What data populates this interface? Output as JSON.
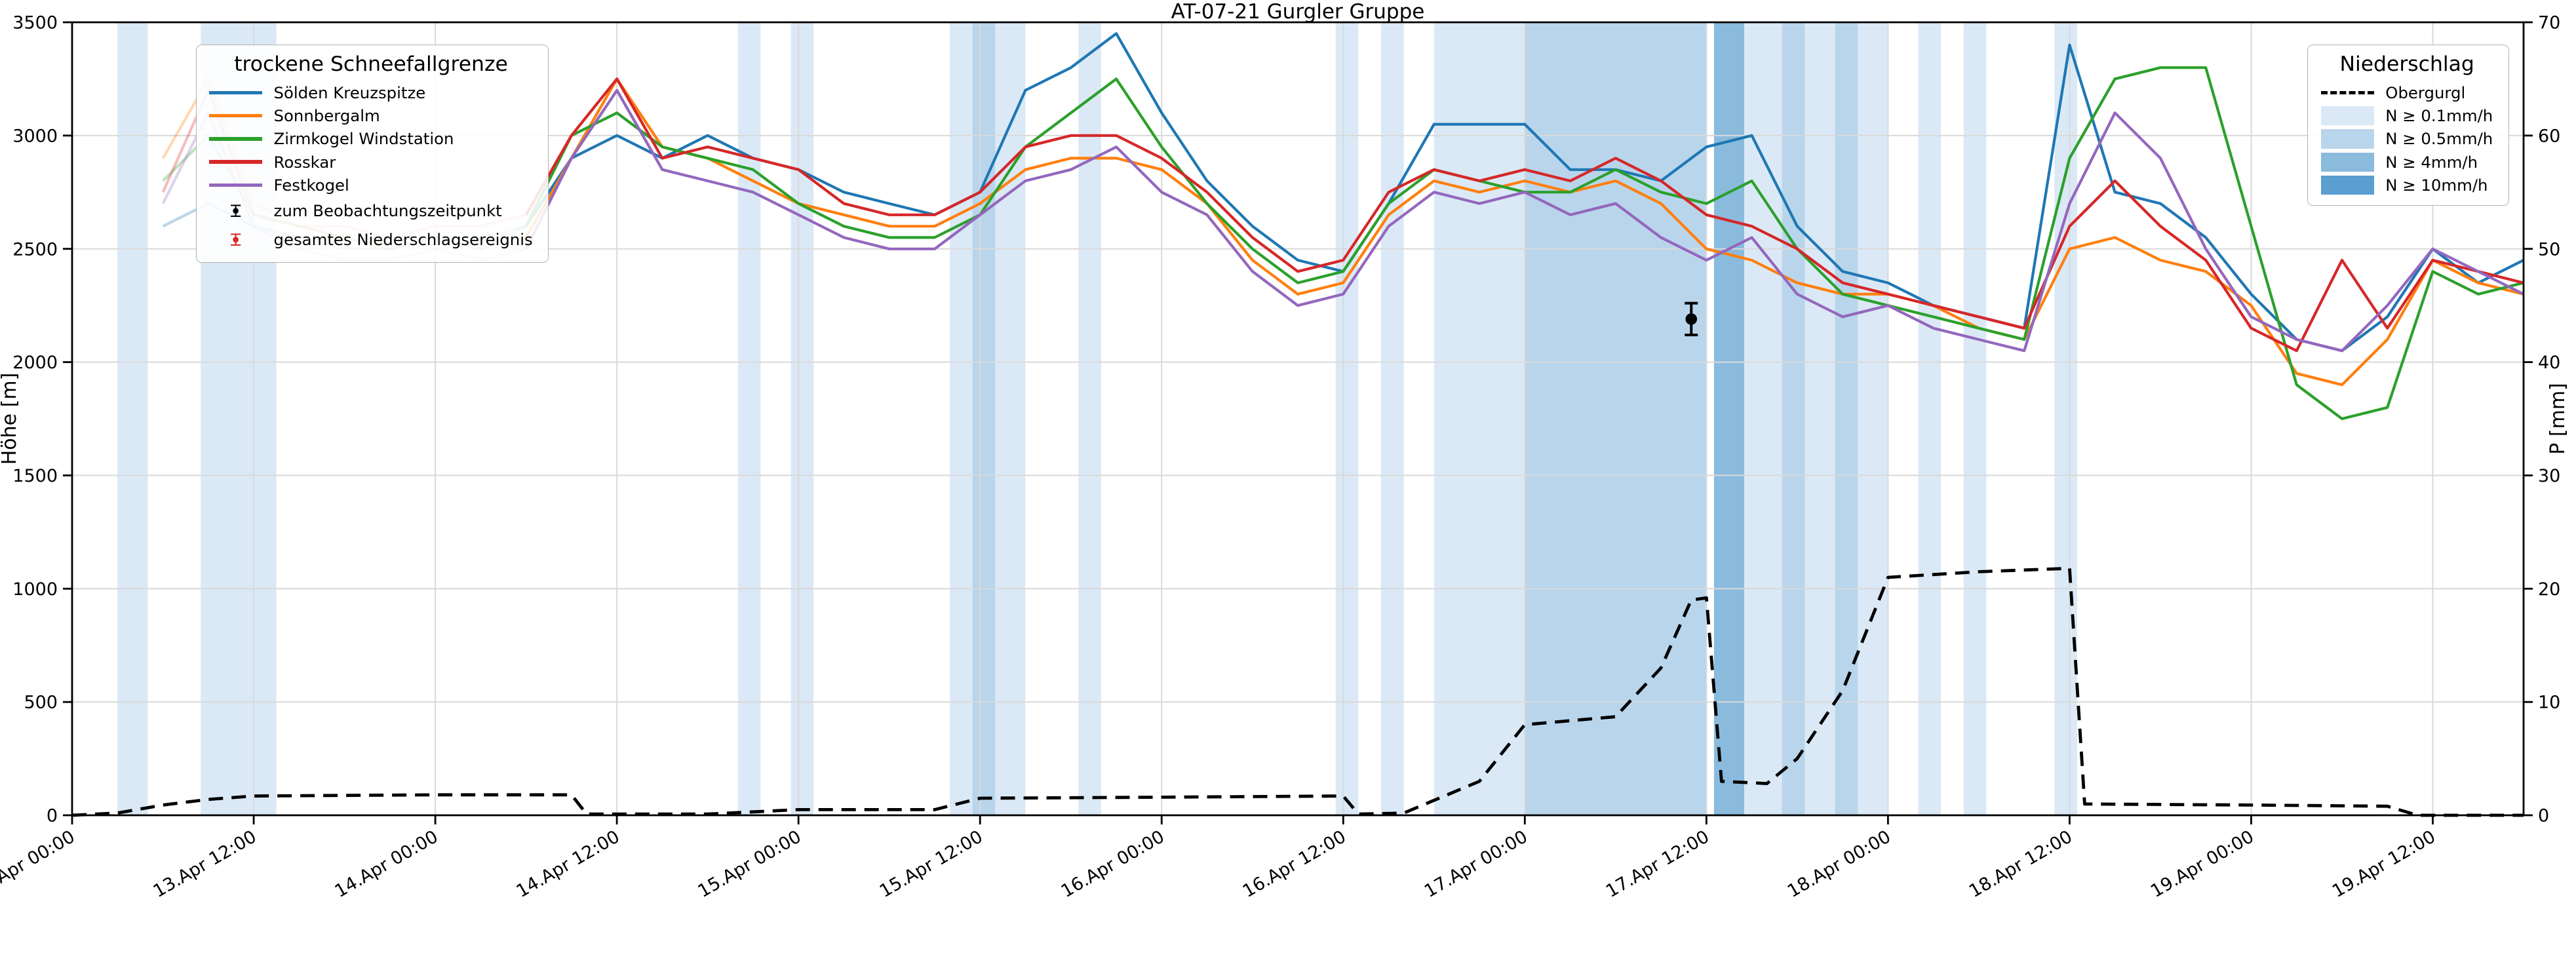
{
  "title": "AT-07-21 Gurgler Gruppe",
  "axes": {
    "y_left_label": "Höhe [m]",
    "y_right_label": "P [mm]",
    "y_left_range": [
      0,
      3500
    ],
    "y_right_range": [
      0,
      70
    ],
    "y_left_ticks": [
      0,
      500,
      1000,
      1500,
      2000,
      2500,
      3000,
      3500
    ],
    "y_right_ticks": [
      0,
      10,
      20,
      30,
      40,
      50,
      60,
      70
    ],
    "x_range_hours": [
      0,
      162
    ],
    "x_tick_hours": [
      0,
      12,
      24,
      36,
      48,
      60,
      72,
      84,
      96,
      108,
      120,
      132,
      144,
      156
    ],
    "x_tick_labels": [
      "13.Apr 00:00",
      "13.Apr 12:00",
      "14.Apr 00:00",
      "14.Apr 12:00",
      "15.Apr 00:00",
      "15.Apr 12:00",
      "16.Apr 00:00",
      "16.Apr 12:00",
      "17.Apr 00:00",
      "17.Apr 12:00",
      "18.Apr 00:00",
      "18.Apr 12:00",
      "19.Apr 00:00",
      "19.Apr 12:00"
    ]
  },
  "legend_snowline": {
    "title": "trockene Schneefallgrenze",
    "entries": [
      {
        "label": "Sölden Kreuzspitze",
        "color": "#1f77b4"
      },
      {
        "label": "Sonnbergalm",
        "color": "#ff7f0e"
      },
      {
        "label": "Zirmkogel Windstation",
        "color": "#2ca02c"
      },
      {
        "label": "Rosskar",
        "color": "#d62728"
      },
      {
        "label": "Festkogel",
        "color": "#9467bd"
      }
    ],
    "marker_entries": [
      {
        "label": "zum Beobachtungszeitpunkt",
        "color": "#000000"
      },
      {
        "label": "gesamtes Niederschlagsereignis",
        "color": "#d62728"
      }
    ]
  },
  "legend_precip": {
    "title": "Niederschlag",
    "line_entry": {
      "label": "Obergurgl",
      "color": "#000000",
      "style": "dashed"
    },
    "band_entries": [
      {
        "label": "N ≥ 0.1mm/h",
        "color": "#dbe9f6",
        "level": "0.1"
      },
      {
        "label": "N ≥ 0.5mm/h",
        "color": "#b9d5ec",
        "level": "0.5"
      },
      {
        "label": "N ≥ 4mm/h",
        "color": "#8abbdd",
        "level": "4"
      },
      {
        "label": "N ≥ 10mm/h",
        "color": "#5a9fd0",
        "level": "10"
      }
    ]
  },
  "chart_data": {
    "type": "line",
    "title": "AT-07-21 Gurgler Gruppe",
    "ylabel_left": "Höhe [m]",
    "ylabel_right": "P [mm]",
    "x_unit": "hours since 13.Apr 00:00",
    "grid": true,
    "faded_until_hour": 30,
    "x": [
      6,
      9,
      12,
      15,
      18,
      21,
      24,
      27,
      30,
      33,
      36,
      39,
      42,
      45,
      48,
      51,
      54,
      57,
      60,
      63,
      66,
      69,
      72,
      75,
      78,
      81,
      84,
      87,
      90,
      93,
      96,
      99,
      102,
      105,
      108,
      111,
      114,
      117,
      120,
      123,
      126,
      129,
      132,
      135,
      138,
      141,
      144,
      147,
      150,
      153,
      156,
      159,
      162
    ],
    "series": [
      {
        "name": "Sölden Kreuzspitze",
        "color": "#1f77b4",
        "values": [
          2600,
          2700,
          2600,
          2550,
          2500,
          2500,
          2550,
          2500,
          2600,
          2900,
          3000,
          2900,
          3000,
          2900,
          2850,
          2750,
          2700,
          2650,
          2750,
          3200,
          3300,
          3450,
          3100,
          2800,
          2600,
          2450,
          2400,
          2700,
          3050,
          3050,
          3050,
          2850,
          2850,
          2800,
          2950,
          3000,
          2600,
          2400,
          2350,
          2250,
          2200,
          2150,
          3400,
          2750,
          2700,
          2550,
          2300,
          2100,
          2050,
          2200,
          2500,
          2350,
          2450
        ]
      },
      {
        "name": "Sonnbergalm",
        "color": "#ff7f0e",
        "values": [
          2900,
          3250,
          2700,
          2600,
          2550,
          2500,
          2550,
          2500,
          2550,
          2900,
          3250,
          2950,
          2900,
          2800,
          2700,
          2650,
          2600,
          2600,
          2700,
          2850,
          2900,
          2900,
          2850,
          2700,
          2450,
          2300,
          2350,
          2650,
          2800,
          2750,
          2800,
          2750,
          2800,
          2700,
          2500,
          2450,
          2350,
          2300,
          2300,
          2250,
          2150,
          2100,
          2500,
          2550,
          2450,
          2400,
          2250,
          1950,
          1900,
          2100,
          2450,
          2350,
          2300
        ]
      },
      {
        "name": "Zirmkogel Windstation",
        "color": "#2ca02c",
        "values": [
          2800,
          3000,
          2650,
          2600,
          2550,
          2500,
          2550,
          2550,
          2600,
          3000,
          3100,
          2950,
          2900,
          2850,
          2700,
          2600,
          2550,
          2550,
          2650,
          2950,
          3100,
          3250,
          2950,
          2700,
          2500,
          2350,
          2400,
          2700,
          2850,
          2800,
          2750,
          2750,
          2850,
          2750,
          2700,
          2800,
          2500,
          2300,
          2250,
          2200,
          2150,
          2100,
          2900,
          3250,
          3300,
          3300,
          2600,
          1900,
          1750,
          1800,
          2400,
          2300,
          2350
        ]
      },
      {
        "name": "Rosskar",
        "color": "#d62728",
        "values": [
          2750,
          3200,
          2650,
          2600,
          2600,
          2550,
          2600,
          2600,
          2650,
          3000,
          3250,
          2900,
          2950,
          2900,
          2850,
          2700,
          2650,
          2650,
          2750,
          2950,
          3000,
          3000,
          2900,
          2750,
          2550,
          2400,
          2450,
          2750,
          2850,
          2800,
          2850,
          2800,
          2900,
          2800,
          2650,
          2600,
          2500,
          2350,
          2300,
          2250,
          2200,
          2150,
          2600,
          2800,
          2600,
          2450,
          2150,
          2050,
          2450,
          2150,
          2450,
          2400,
          2350
        ]
      },
      {
        "name": "Festkogel",
        "color": "#9467bd",
        "values": [
          2700,
          3100,
          2600,
          2500,
          2450,
          2450,
          2500,
          2450,
          2500,
          2900,
          3200,
          2850,
          2800,
          2750,
          2650,
          2550,
          2500,
          2500,
          2650,
          2800,
          2850,
          2950,
          2750,
          2650,
          2400,
          2250,
          2300,
          2600,
          2750,
          2700,
          2750,
          2650,
          2700,
          2550,
          2450,
          2550,
          2300,
          2200,
          2250,
          2150,
          2100,
          2050,
          2700,
          3100,
          2900,
          2500,
          2200,
          2100,
          2050,
          2250,
          2500,
          2400,
          2300
        ]
      }
    ],
    "precip_line": {
      "name": "Obergurgl",
      "color": "#000000",
      "style": "dashed",
      "axis": "right",
      "points": [
        [
          0,
          0
        ],
        [
          3,
          0.2
        ],
        [
          6,
          0.9
        ],
        [
          9,
          1.4
        ],
        [
          12,
          1.7
        ],
        [
          24,
          1.8
        ],
        [
          33,
          1.8
        ],
        [
          34,
          0.1
        ],
        [
          42,
          0.1
        ],
        [
          45,
          0.3
        ],
        [
          48,
          0.5
        ],
        [
          57,
          0.5
        ],
        [
          60,
          1.5
        ],
        [
          72,
          1.6
        ],
        [
          84,
          1.7
        ],
        [
          85,
          0.1
        ],
        [
          88,
          0.2
        ],
        [
          93,
          3
        ],
        [
          96,
          8
        ],
        [
          102,
          8.7
        ],
        [
          105,
          13
        ],
        [
          107,
          19
        ],
        [
          108,
          19.2
        ],
        [
          109,
          3
        ],
        [
          112,
          2.8
        ],
        [
          114,
          5
        ],
        [
          117,
          11
        ],
        [
          120,
          21
        ],
        [
          126,
          21.5
        ],
        [
          132,
          21.8
        ],
        [
          133,
          1
        ],
        [
          144,
          0.9
        ],
        [
          153,
          0.8
        ],
        [
          155,
          0
        ],
        [
          162,
          0
        ]
      ]
    },
    "level_colors": {
      "0.1": "#dbe9f6",
      "0.5": "#b9d5ec",
      "4": "#8abbdd",
      "10": "#5a9fd0"
    },
    "precip_bands": [
      {
        "start": 3,
        "end": 5,
        "level": "0.1"
      },
      {
        "start": 8.5,
        "end": 13.5,
        "level": "0.1"
      },
      {
        "start": 44,
        "end": 45.5,
        "level": "0.1"
      },
      {
        "start": 47.5,
        "end": 49,
        "level": "0.1"
      },
      {
        "start": 58,
        "end": 63,
        "level": "0.1"
      },
      {
        "start": 59.5,
        "end": 61,
        "level": "0.5"
      },
      {
        "start": 66.5,
        "end": 68,
        "level": "0.1"
      },
      {
        "start": 83.5,
        "end": 85,
        "level": "0.1"
      },
      {
        "start": 86.5,
        "end": 88,
        "level": "0.1"
      },
      {
        "start": 90,
        "end": 96,
        "level": "0.1"
      },
      {
        "start": 96,
        "end": 108,
        "level": "0.5"
      },
      {
        "start": 108.5,
        "end": 110.5,
        "level": "4"
      },
      {
        "start": 110.5,
        "end": 120,
        "level": "0.1"
      },
      {
        "start": 113,
        "end": 114.5,
        "level": "0.5"
      },
      {
        "start": 116.5,
        "end": 118,
        "level": "0.5"
      },
      {
        "start": 122,
        "end": 123.5,
        "level": "0.1"
      },
      {
        "start": 125,
        "end": 126.5,
        "level": "0.1"
      },
      {
        "start": 131,
        "end": 132.5,
        "level": "0.1"
      }
    ],
    "observation_marker": {
      "label": "zum Beobachtungszeitpunkt",
      "t": 107,
      "height_m": 2190,
      "yerr_m": 70,
      "color": "#000000"
    }
  }
}
